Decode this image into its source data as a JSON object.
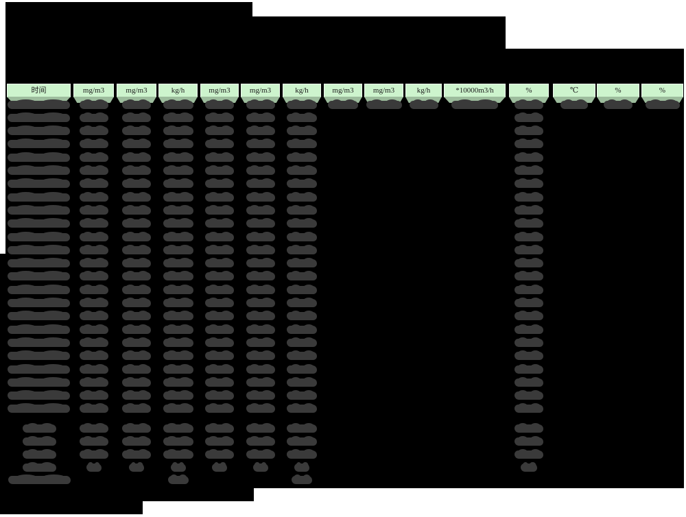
{
  "page": {
    "background": "#ffffff"
  },
  "colors": {
    "redaction_block": "#000000",
    "redaction_blob": "#3a3a3a",
    "table_header_bg": "#cdf4cd",
    "table_header_edge": "#eef8ee",
    "table_header_underlay": "#9dbd9d",
    "table_header_text": "#1b1b1b"
  },
  "table": {
    "header_cells": [
      {
        "label": "时间"
      },
      {
        "label": "mg/m3"
      },
      {
        "label": "mg/m3"
      },
      {
        "label": "kg/h"
      },
      {
        "label": "mg/m3"
      },
      {
        "label": "mg/m3"
      },
      {
        "label": "kg/h"
      },
      {
        "label": "mg/m3"
      },
      {
        "label": "mg/m3"
      },
      {
        "label": "kg/h"
      },
      {
        "label": "*10000m3/h"
      },
      {
        "label": "%"
      },
      {
        "label": "℃"
      },
      {
        "label": "%"
      },
      {
        "label": "%"
      }
    ],
    "redacted_body": {
      "hourly_row_count": 24,
      "first_row_redacted_columns": [
        0,
        1,
        2,
        3,
        4,
        5,
        6,
        7,
        8,
        9,
        10,
        11,
        12,
        13,
        14
      ],
      "hourly_rows_redacted_columns": [
        0,
        1,
        2,
        3,
        4,
        5,
        6,
        11
      ],
      "summary_row_count": 3,
      "summary_rows_redacted_columns": [
        1,
        2,
        3,
        4,
        5,
        6,
        11
      ],
      "short_summary_row_redacted_columns": [
        1,
        2,
        3,
        4,
        5,
        6,
        11
      ],
      "total_row_redacted_columns": [
        0,
        3,
        6
      ]
    },
    "redacted_title_line_count": 2
  }
}
